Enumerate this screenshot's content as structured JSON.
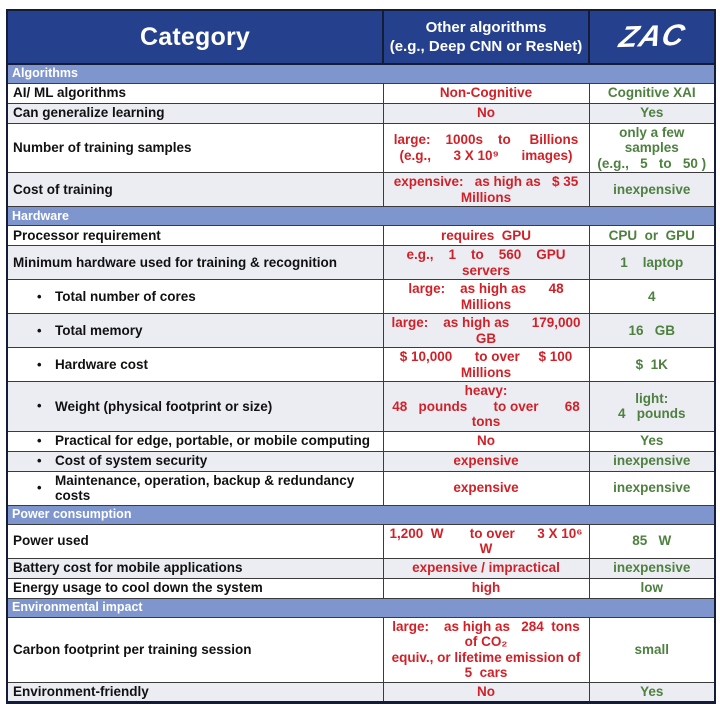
{
  "header": {
    "category": "Category",
    "other": "Other algorithms\n(e.g., Deep CNN or ResNet)",
    "zac": "ZAC"
  },
  "glyphs": {
    "bullet": "•"
  },
  "colors": {
    "header_blue": "#25408d",
    "section_blue": "#7e95ce",
    "stripe_gray": "#ecedf3",
    "negative_red": "#d02128",
    "positive_green": "#4e8040"
  },
  "sections": [
    {
      "title": "Algorithms",
      "rows": [
        {
          "c1": "AI/ ML algorithms",
          "c2": "Non-Cognitive",
          "c3": "Cognitive XAI"
        },
        {
          "c1": "Can generalize learning",
          "c2": "No",
          "c3": "Yes"
        },
        {
          "c1": "Number of training samples",
          "c2": "large:    1000s    to     Billions\n(e.g.,      3 X 10⁹      images)",
          "c3": "only a few samples\n(e.g.,   5   to   50 )"
        },
        {
          "c1": "Cost of training",
          "c2": "expensive:   as high as   $ 35   Millions",
          "c3": "inexpensive"
        }
      ]
    },
    {
      "title": "Hardware",
      "rows": [
        {
          "c1": "Processor requirement",
          "c2": "requires  GPU",
          "c3": "CPU  or  GPU"
        },
        {
          "c1": "Minimum hardware used for training & recognition",
          "c2": "e.g.,    1    to    560    GPU servers",
          "c3": "1    laptop"
        },
        {
          "c1": "Total number of cores",
          "c2": "large:    as high as      48   Millions",
          "c3": "4"
        },
        {
          "c1": "Total memory",
          "c2": "large:    as high as      179,000   GB",
          "c3": "16   GB"
        },
        {
          "c1": "Hardware cost",
          "c2": "$ 10,000      to over     $ 100  Millions",
          "c3": "$  1K"
        },
        {
          "c1": "Weight (physical footprint or size)",
          "c2": "heavy:\n48   pounds       to over       68   tons",
          "c3": "light:\n4   pounds"
        },
        {
          "c1": "Practical for edge, portable, or mobile computing",
          "c2": "No",
          "c3": "Yes"
        },
        {
          "c1": "Cost of system security",
          "c2": "expensive",
          "c3": "inexpensive"
        },
        {
          "c1": "Maintenance, operation, backup & redundancy costs",
          "c2": "expensive",
          "c3": "inexpensive"
        }
      ]
    },
    {
      "title": "Power consumption",
      "rows": [
        {
          "c1": "Power used",
          "c2": "1,200  W       to over      3 X 10⁶  W",
          "c3": "85   W"
        },
        {
          "c1": "Battery cost for mobile applications",
          "c2": "expensive / impractical",
          "c3": "inexpensive"
        },
        {
          "c1": "Energy usage to cool down the system",
          "c2": "high",
          "c3": "low"
        }
      ]
    },
    {
      "title": "Environmental impact",
      "rows": [
        {
          "c1": "Carbon footprint per training session",
          "c2": "large:    as high as   284  tons of CO₂\nequiv., or lifetime emission of  5  cars",
          "c3": "small"
        },
        {
          "c1": "Environment-friendly",
          "c2": "No",
          "c3": "Yes"
        }
      ]
    }
  ]
}
